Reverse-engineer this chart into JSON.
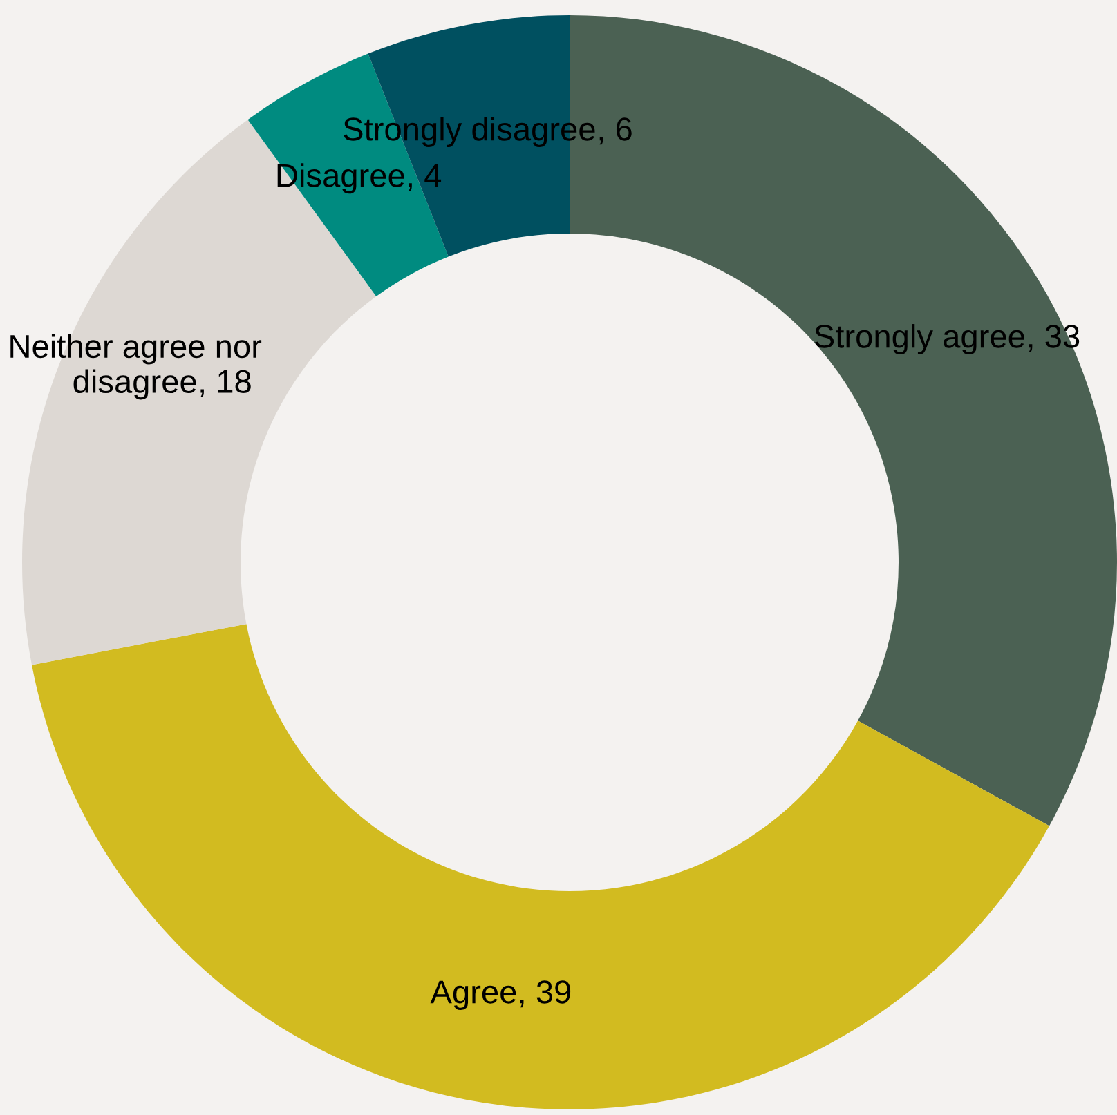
{
  "chart_data": {
    "type": "donut",
    "categories": [
      "Strongly agree",
      "Agree",
      "Neither agree nor\ndisagree",
      "Disagree",
      "Strongly disagree"
    ],
    "values": [
      33,
      39,
      18,
      4,
      6
    ],
    "colors": [
      "#4b6153",
      "#d2bb20",
      "#ddd8d3",
      "#008b80",
      "#005060"
    ],
    "value_labels": [
      ", 33",
      ", 39",
      ", 18",
      ", 4",
      ", 6"
    ],
    "legend": false
  }
}
